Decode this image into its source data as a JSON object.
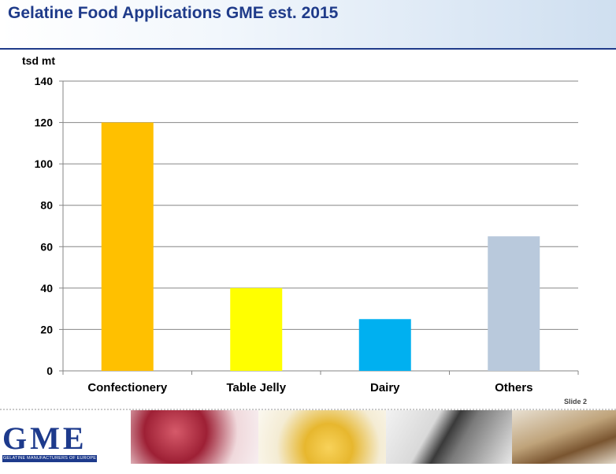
{
  "page": {
    "title": "Gelatine Food Applications GME est. 2015",
    "slide_label": "Slide 2"
  },
  "logo": {
    "text": "GME",
    "subtitle": "GELATINE MANUFACTURERS OF EUROPE"
  },
  "chart_data": {
    "type": "bar",
    "categories": [
      "Confectionery",
      "Table Jelly",
      "Dairy",
      "Others"
    ],
    "values": [
      120,
      40,
      25,
      65
    ],
    "colors": [
      "#ffc000",
      "#ffff00",
      "#00b0f0",
      "#b9c9dc"
    ],
    "title": "",
    "xlabel": "",
    "ylabel": "tsd mt",
    "ylim": [
      0,
      140
    ],
    "yticks": [
      0,
      20,
      40,
      60,
      80,
      100,
      120,
      140
    ],
    "grid": true
  },
  "footer": {
    "images": [
      "gelatine-dessert-photo",
      "gelatine-capsules-photo",
      "film-strip-photo",
      "old-book-photo"
    ]
  }
}
